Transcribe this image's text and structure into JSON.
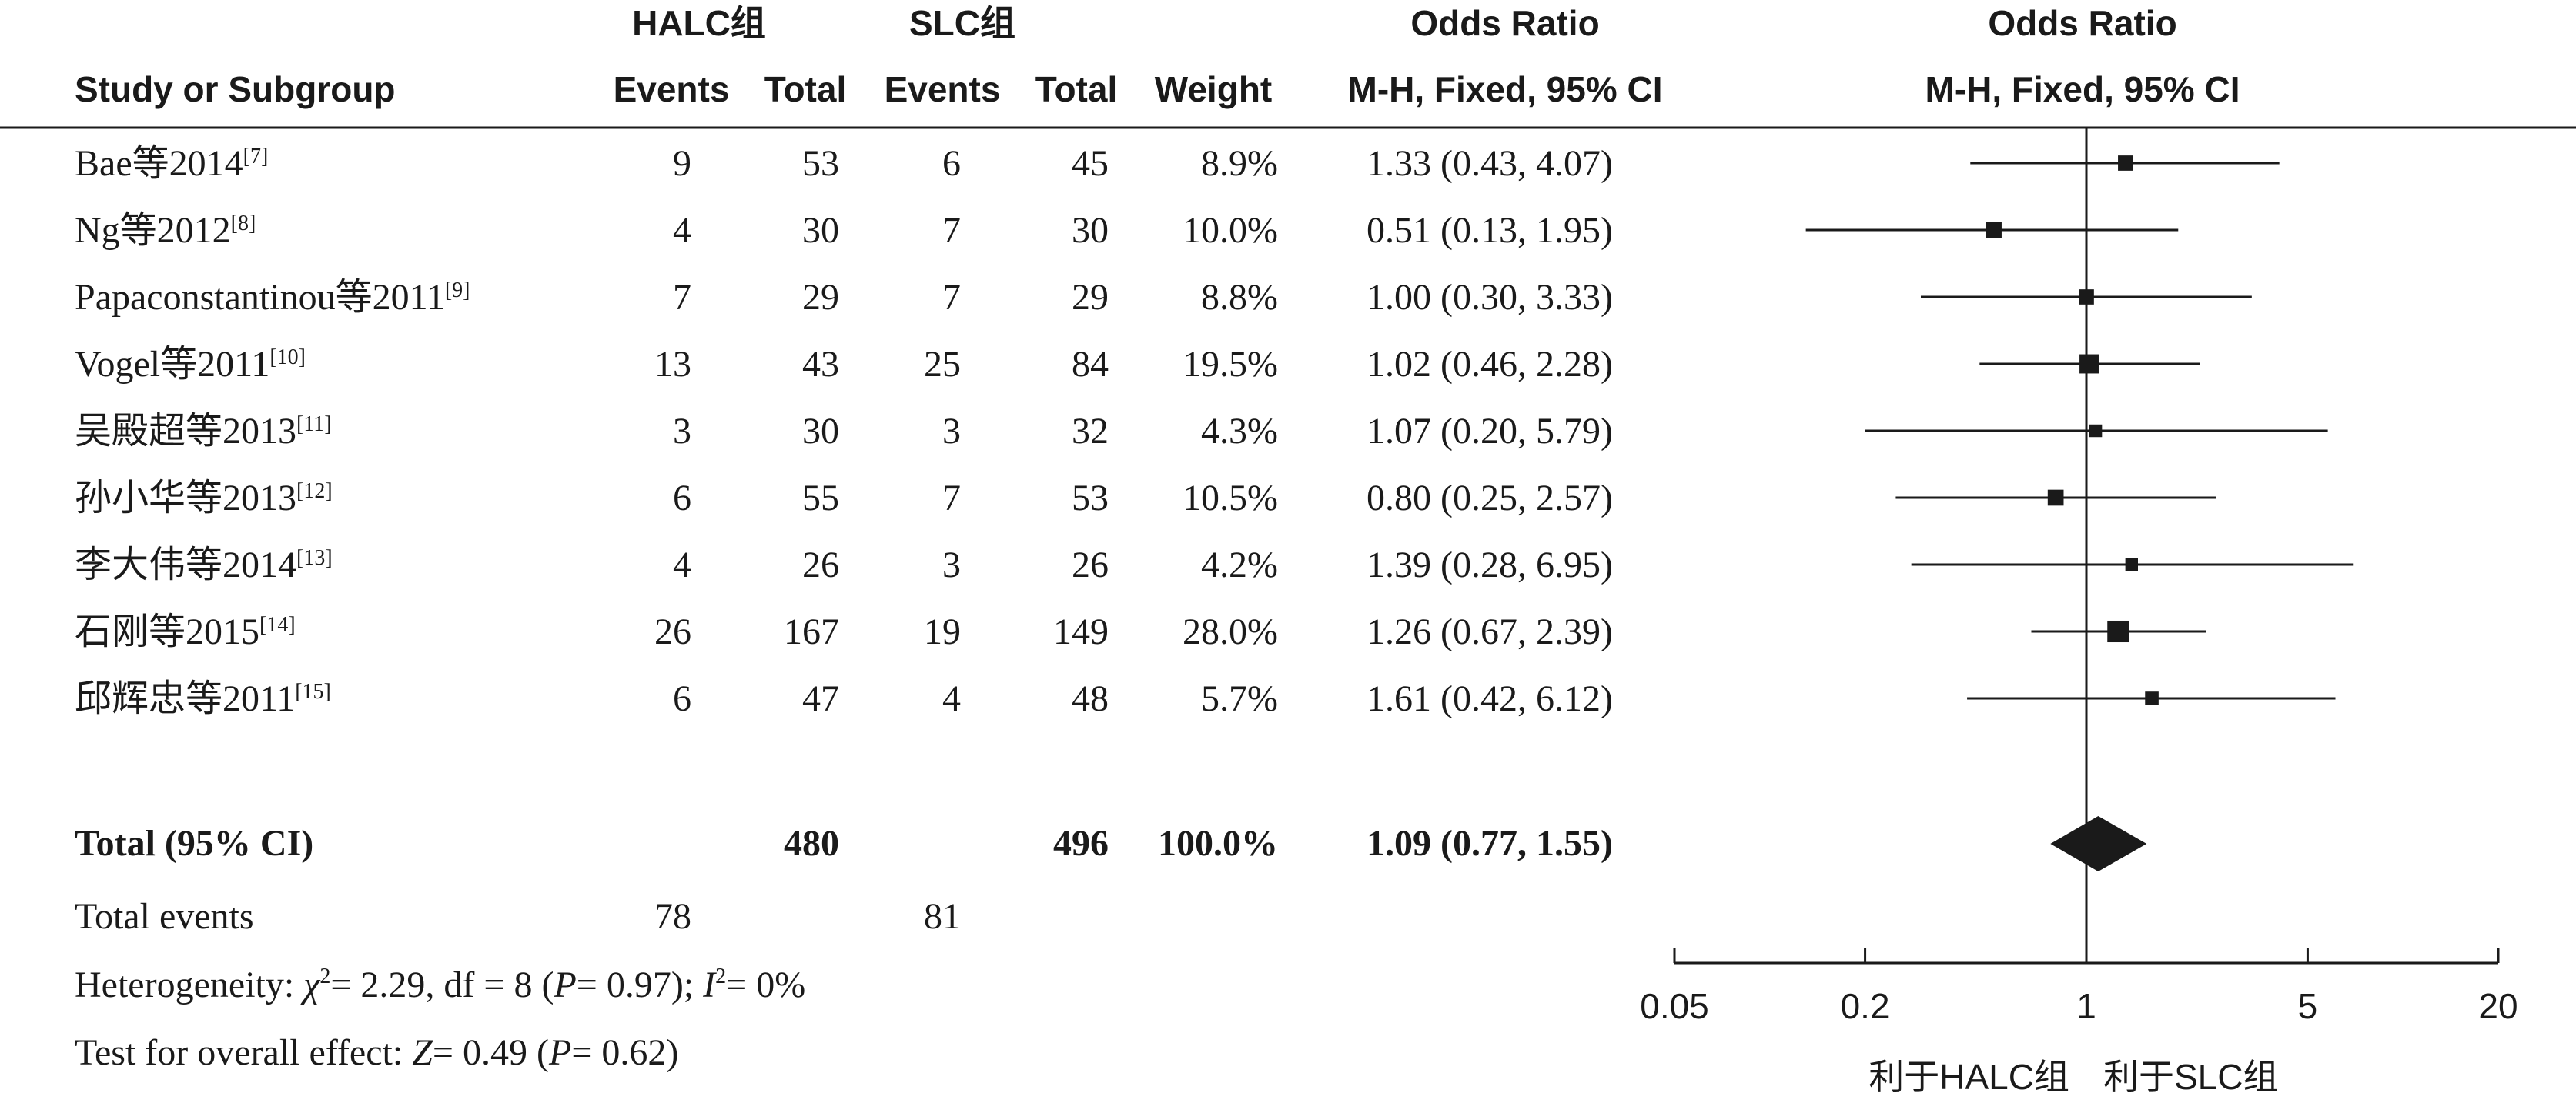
{
  "colors": {
    "ink": "#1a1a1a",
    "background": "#ffffff"
  },
  "header": {
    "group1": "HALC组",
    "group2": "SLC组",
    "or_title": "Odds Ratio",
    "plot_title": "Odds Ratio",
    "col_study": "Study or Subgroup",
    "col_events1": "Events",
    "col_total1": "Total",
    "col_events2": "Events",
    "col_total2": "Total",
    "col_weight": "Weight",
    "col_method": "M-H, Fixed, 95% CI",
    "plot_method": "M-H, Fixed, 95% CI"
  },
  "total": {
    "label": "Total (95% CI)",
    "total1": "480",
    "total2": "496",
    "weight": "100.0%",
    "ci": "1.09 (0.77, 1.55)"
  },
  "total_events": {
    "label": "Total events",
    "e1": "78",
    "e2": "81"
  },
  "heterogeneity": {
    "prefix": "Heterogeneity: ",
    "chi": "χ",
    "chi_sup": "2",
    "mid": "= 2.29, df = 8 (",
    "p": "P",
    "p_val": "= 0.97); ",
    "i": "I",
    "i_sup": "2",
    "i_val": "= 0%"
  },
  "overall": {
    "prefix": "Test for overall effect: ",
    "z": "Z",
    "z_val": "= 0.49 (",
    "p": "P",
    "p_val": "= 0.62)"
  },
  "chart_data": {
    "type": "forest",
    "scale": "log",
    "xlim": [
      0.05,
      20
    ],
    "reference_line": 1,
    "x_ticks": [
      0.05,
      0.2,
      1,
      5,
      20
    ],
    "x_tick_labels": [
      "0.05",
      "0.2",
      "1",
      "5",
      "20"
    ],
    "favours_left": "利于HALC组",
    "favours_right": "利于SLC组",
    "studies": [
      {
        "name": "Bae等2014",
        "ref": "[7]",
        "events1": "9",
        "total1": "53",
        "events2": "6",
        "total2": "45",
        "weight": "8.9%",
        "weight_value": 8.9,
        "ci_text": "1.33 (0.43, 4.07)",
        "or": 1.33,
        "lower": 0.43,
        "upper": 4.07
      },
      {
        "name": "Ng等2012",
        "ref": "[8]",
        "events1": "4",
        "total1": "30",
        "events2": "7",
        "total2": "30",
        "weight": "10.0%",
        "weight_value": 10.0,
        "ci_text": "0.51 (0.13, 1.95)",
        "or": 0.51,
        "lower": 0.13,
        "upper": 1.95
      },
      {
        "name": "Papaconstantinou等2011",
        "ref": "[9]",
        "events1": "7",
        "total1": "29",
        "events2": "7",
        "total2": "29",
        "weight": "8.8%",
        "weight_value": 8.8,
        "ci_text": "1.00 (0.30, 3.33)",
        "or": 1.0,
        "lower": 0.3,
        "upper": 3.33
      },
      {
        "name": "Vogel等2011",
        "ref": "[10]",
        "events1": "13",
        "total1": "43",
        "events2": "25",
        "total2": "84",
        "weight": "19.5%",
        "weight_value": 19.5,
        "ci_text": "1.02 (0.46, 2.28)",
        "or": 1.02,
        "lower": 0.46,
        "upper": 2.28
      },
      {
        "name": "吴殿超等2013",
        "ref": "[11]",
        "events1": "3",
        "total1": "30",
        "events2": "3",
        "total2": "32",
        "weight": "4.3%",
        "weight_value": 4.3,
        "ci_text": "1.07 (0.20, 5.79)",
        "or": 1.07,
        "lower": 0.2,
        "upper": 5.79
      },
      {
        "name": "孙小华等2013",
        "ref": "[12]",
        "events1": "6",
        "total1": "55",
        "events2": "7",
        "total2": "53",
        "weight": "10.5%",
        "weight_value": 10.5,
        "ci_text": "0.80 (0.25, 2.57)",
        "or": 0.8,
        "lower": 0.25,
        "upper": 2.57
      },
      {
        "name": "李大伟等2014",
        "ref": "[13]",
        "events1": "4",
        "total1": "26",
        "events2": "3",
        "total2": "26",
        "weight": "4.2%",
        "weight_value": 4.2,
        "ci_text": "1.39 (0.28, 6.95)",
        "or": 1.39,
        "lower": 0.28,
        "upper": 6.95
      },
      {
        "name": "石刚等2015",
        "ref": "[14]",
        "events1": "26",
        "total1": "167",
        "events2": "19",
        "total2": "149",
        "weight": "28.0%",
        "weight_value": 28.0,
        "ci_text": "1.26 (0.67, 2.39)",
        "or": 1.26,
        "lower": 0.67,
        "upper": 2.39
      },
      {
        "name": "邱辉忠等2011",
        "ref": "[15]",
        "events1": "6",
        "total1": "47",
        "events2": "4",
        "total2": "48",
        "weight": "5.7%",
        "weight_value": 5.7,
        "ci_text": "1.61 (0.42, 6.12)",
        "or": 1.61,
        "lower": 0.42,
        "upper": 6.12
      }
    ],
    "pooled": {
      "or": 1.09,
      "lower": 0.77,
      "upper": 1.55
    }
  }
}
